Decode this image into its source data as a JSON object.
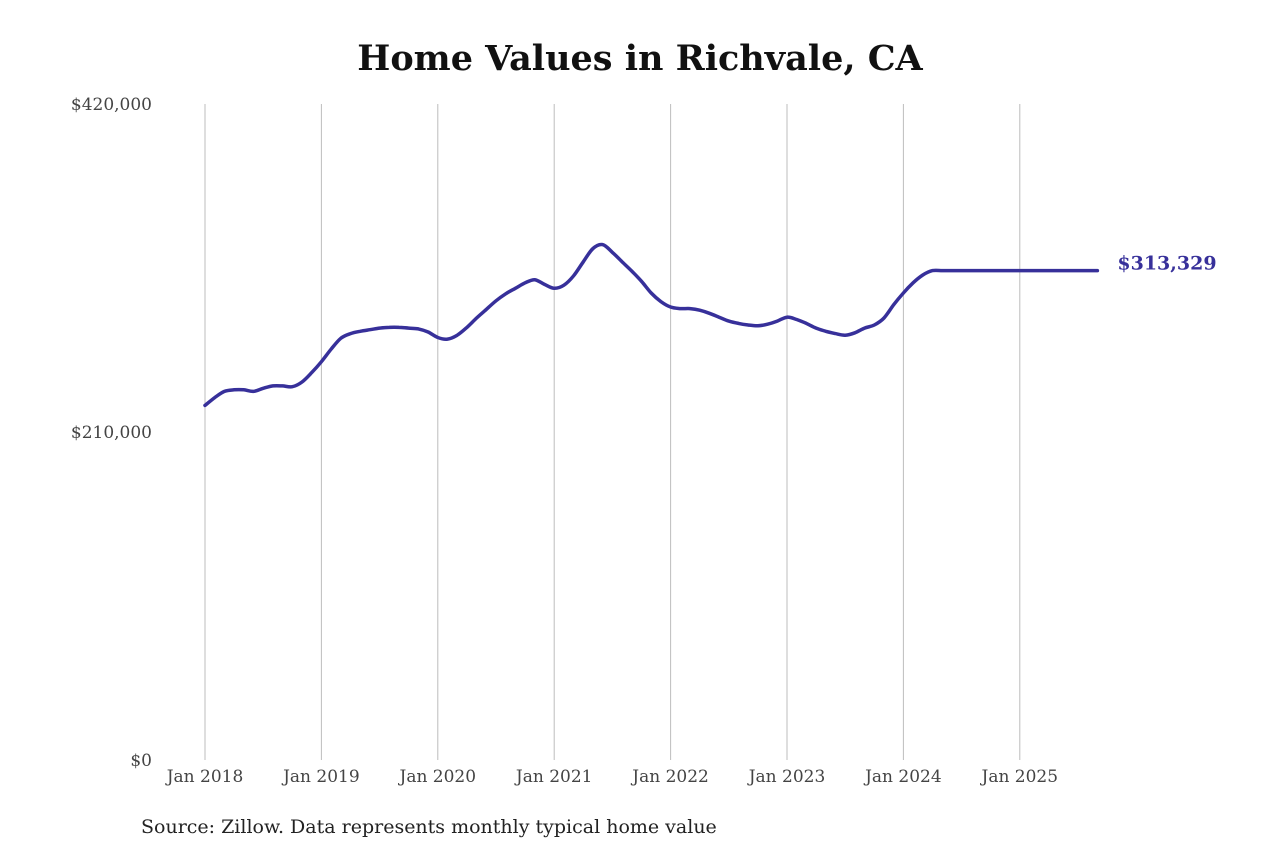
{
  "chart_data": {
    "type": "line",
    "title": "Home Values in Richvale, CA",
    "source": "Source: Zillow. Data represents monthly typical home value",
    "xlabel": "",
    "ylabel": "",
    "ylim": [
      0,
      420000
    ],
    "y_ticks": [
      {
        "value": 0,
        "label": "$0"
      },
      {
        "value": 210000,
        "label": "$210,000"
      },
      {
        "value": 420000,
        "label": "$420,000"
      }
    ],
    "x_ticks": [
      {
        "value": "2018-01",
        "label": "Jan 2018"
      },
      {
        "value": "2019-01",
        "label": "Jan 2019"
      },
      {
        "value": "2020-01",
        "label": "Jan 2020"
      },
      {
        "value": "2021-01",
        "label": "Jan 2021"
      },
      {
        "value": "2022-01",
        "label": "Jan 2022"
      },
      {
        "value": "2023-01",
        "label": "Jan 2023"
      },
      {
        "value": "2024-01",
        "label": "Jan 2024"
      },
      {
        "value": "2025-01",
        "label": "Jan 2025"
      }
    ],
    "grid": {
      "vertical": true,
      "horizontal": false
    },
    "line_color": "#37309a",
    "end_label": "$313,329",
    "series": [
      {
        "x": [
          "2018-01",
          "2018-02",
          "2018-03",
          "2018-04",
          "2018-05",
          "2018-06",
          "2018-07",
          "2018-08",
          "2018-09",
          "2018-10",
          "2018-11",
          "2018-12",
          "2019-01",
          "2019-02",
          "2019-03",
          "2019-04",
          "2019-05",
          "2019-06",
          "2019-07",
          "2019-08",
          "2019-09",
          "2019-10",
          "2019-11",
          "2019-12",
          "2020-01",
          "2020-02",
          "2020-03",
          "2020-04",
          "2020-05",
          "2020-06",
          "2020-07",
          "2020-08",
          "2020-09",
          "2020-10",
          "2020-11",
          "2020-12",
          "2021-01",
          "2021-02",
          "2021-03",
          "2021-04",
          "2021-05",
          "2021-06",
          "2021-07",
          "2021-08",
          "2021-09",
          "2021-10",
          "2021-11",
          "2021-12",
          "2022-01",
          "2022-02",
          "2022-03",
          "2022-04",
          "2022-05",
          "2022-06",
          "2022-07",
          "2022-08",
          "2022-09",
          "2022-10",
          "2022-11",
          "2022-12",
          "2023-01",
          "2023-02",
          "2023-03",
          "2023-04",
          "2023-05",
          "2023-06",
          "2023-07",
          "2023-08",
          "2023-09",
          "2023-10",
          "2023-11",
          "2023-12",
          "2024-01",
          "2024-02",
          "2024-03",
          "2024-04",
          "2024-05",
          "2024-06",
          "2024-07",
          "2024-08",
          "2024-09",
          "2024-10",
          "2024-11",
          "2024-12",
          "2025-01",
          "2025-02",
          "2025-03",
          "2025-04",
          "2025-05",
          "2025-06",
          "2025-07",
          "2025-08",
          "2025-09"
        ],
        "values": [
          227000,
          232000,
          236000,
          237000,
          237000,
          236000,
          238000,
          239500,
          239500,
          239000,
          242000,
          248000,
          255000,
          263000,
          270000,
          273000,
          274500,
          275500,
          276500,
          277000,
          277000,
          276500,
          276000,
          274000,
          270500,
          269500,
          272000,
          277000,
          283000,
          288500,
          294000,
          298500,
          302000,
          305500,
          307500,
          304500,
          302000,
          304000,
          310000,
          319000,
          327500,
          330000,
          325000,
          319000,
          313000,
          306500,
          299000,
          293500,
          290000,
          289000,
          289000,
          288000,
          286000,
          283500,
          281000,
          279500,
          278500,
          278000,
          279000,
          281000,
          283500,
          282000,
          279500,
          276500,
          274500,
          273000,
          272000,
          273500,
          276500,
          278500,
          283000,
          291500,
          299000,
          305500,
          310500,
          313329,
          313329,
          313329,
          313329,
          313329,
          313329,
          313329,
          313329,
          313329,
          313329,
          313329,
          313329,
          313329,
          313329,
          313329,
          313329,
          313329,
          313329
        ]
      }
    ]
  }
}
